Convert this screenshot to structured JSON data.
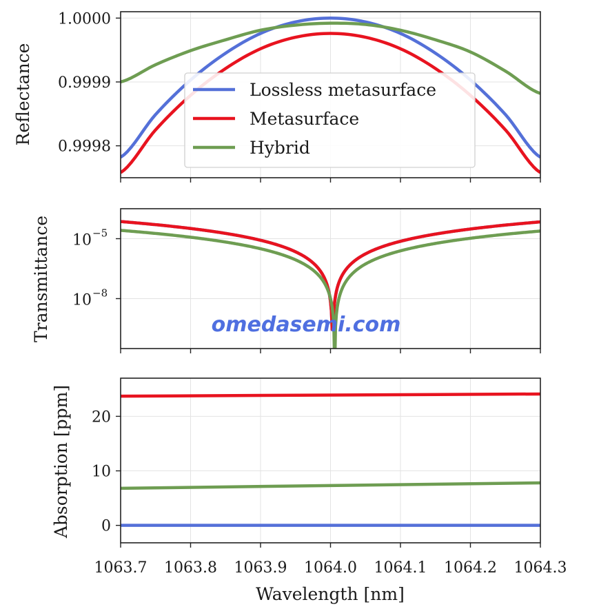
{
  "watermark": "omedasemi.com",
  "colors": {
    "lossless": "#5470d8",
    "metasurface": "#e8131f",
    "hybrid": "#6e9d52",
    "grid": "#e3e3e3",
    "axis": "#222222"
  },
  "chart_data": [
    {
      "type": "line",
      "panel": "reflectance",
      "title": "",
      "xlabel": "",
      "ylabel": "Reflectance",
      "xlim": [
        1063.7,
        1064.3
      ],
      "ylim": [
        0.99975,
        1.00001
      ],
      "xticks": [
        1063.7,
        1063.8,
        1063.9,
        1064.0,
        1064.1,
        1064.2,
        1064.3
      ],
      "yticks": [
        0.9998,
        0.9999,
        1.0
      ],
      "ytick_labels": [
        "0.9998",
        "0.9999",
        "1.0000"
      ],
      "grid": true,
      "legend": {
        "position": "center",
        "entries": [
          "Lossless metasurface",
          "Metasurface",
          "Hybrid"
        ]
      },
      "series": [
        {
          "name": "Lossless metasurface",
          "color_key": "lossless",
          "x": [
            1063.7,
            1063.75,
            1063.8,
            1063.85,
            1063.9,
            1063.95,
            1064.0,
            1064.05,
            1064.1,
            1064.15,
            1064.2,
            1064.25,
            1064.3
          ],
          "values": [
            0.999782,
            0.999849,
            0.999903,
            0.999945,
            0.999976,
            0.999994,
            1.0,
            0.999994,
            0.999976,
            0.999945,
            0.999903,
            0.999849,
            0.999782
          ]
        },
        {
          "name": "Metasurface",
          "color_key": "metasurface",
          "x": [
            1063.7,
            1063.75,
            1063.8,
            1063.85,
            1063.9,
            1063.95,
            1064.0,
            1064.05,
            1064.1,
            1064.15,
            1064.2,
            1064.25,
            1064.3
          ],
          "values": [
            0.999758,
            0.999825,
            0.999879,
            0.999921,
            0.999952,
            0.99997,
            0.999976,
            0.99997,
            0.999952,
            0.999921,
            0.999879,
            0.999825,
            0.999758
          ]
        },
        {
          "name": "Hybrid",
          "color_key": "hybrid",
          "x": [
            1063.7,
            1063.75,
            1063.8,
            1063.85,
            1063.9,
            1063.95,
            1064.0,
            1064.05,
            1064.1,
            1064.15,
            1064.2,
            1064.25,
            1064.3
          ],
          "values": [
            0.9999,
            0.999927,
            0.999949,
            0.999966,
            0.999981,
            0.999989,
            0.999992,
            0.99999,
            0.999981,
            0.999966,
            0.999947,
            0.999917,
            0.999882
          ]
        }
      ]
    },
    {
      "type": "line",
      "panel": "transmittance",
      "title": "",
      "xlabel": "",
      "ylabel": "Transmittance",
      "xlim": [
        1063.7,
        1064.3
      ],
      "yscale": "log",
      "ylim_log10": [
        -10.5,
        -3.5
      ],
      "yticks_log10": [
        -5,
        -8
      ],
      "ytick_labels": [
        "10",
        "10"
      ],
      "ytick_exponents": [
        "−5",
        "−8"
      ],
      "grid": true,
      "series": [
        {
          "name": "Lossless metasurface",
          "color_key": "lossless",
          "center": 1064.003,
          "log10_max": -4.15,
          "k": 2.0,
          "x_span": 0.3
        },
        {
          "name": "Metasurface",
          "color_key": "metasurface",
          "center": 1064.003,
          "log10_max": -4.15,
          "k": 2.0,
          "x_span": 0.3
        },
        {
          "name": "Hybrid",
          "color_key": "hybrid",
          "center": 1064.006,
          "log10_max": -4.6,
          "k": 2.0,
          "x_span": 0.3
        }
      ]
    },
    {
      "type": "line",
      "panel": "absorption",
      "title": "",
      "xlabel": "Wavelength [nm]",
      "ylabel": "Absorption [ppm]",
      "xlim": [
        1063.7,
        1064.3
      ],
      "ylim": [
        -3.2,
        27
      ],
      "xticks": [
        1063.7,
        1063.8,
        1063.9,
        1064.0,
        1064.1,
        1064.2,
        1064.3
      ],
      "xtick_labels": [
        "1063.7",
        "1063.8",
        "1063.9",
        "1064.0",
        "1064.1",
        "1064.2",
        "1064.3"
      ],
      "yticks": [
        0,
        10,
        20
      ],
      "ytick_labels": [
        "0",
        "10",
        "20"
      ],
      "grid": true,
      "series": [
        {
          "name": "Lossless metasurface",
          "color_key": "lossless",
          "x": [
            1063.7,
            1064.3
          ],
          "values": [
            0,
            0
          ]
        },
        {
          "name": "Metasurface",
          "color_key": "metasurface",
          "x": [
            1063.7,
            1064.3
          ],
          "values": [
            23.7,
            24.1
          ]
        },
        {
          "name": "Hybrid",
          "color_key": "hybrid",
          "x": [
            1063.7,
            1064.3
          ],
          "values": [
            6.8,
            7.8
          ]
        }
      ]
    }
  ]
}
